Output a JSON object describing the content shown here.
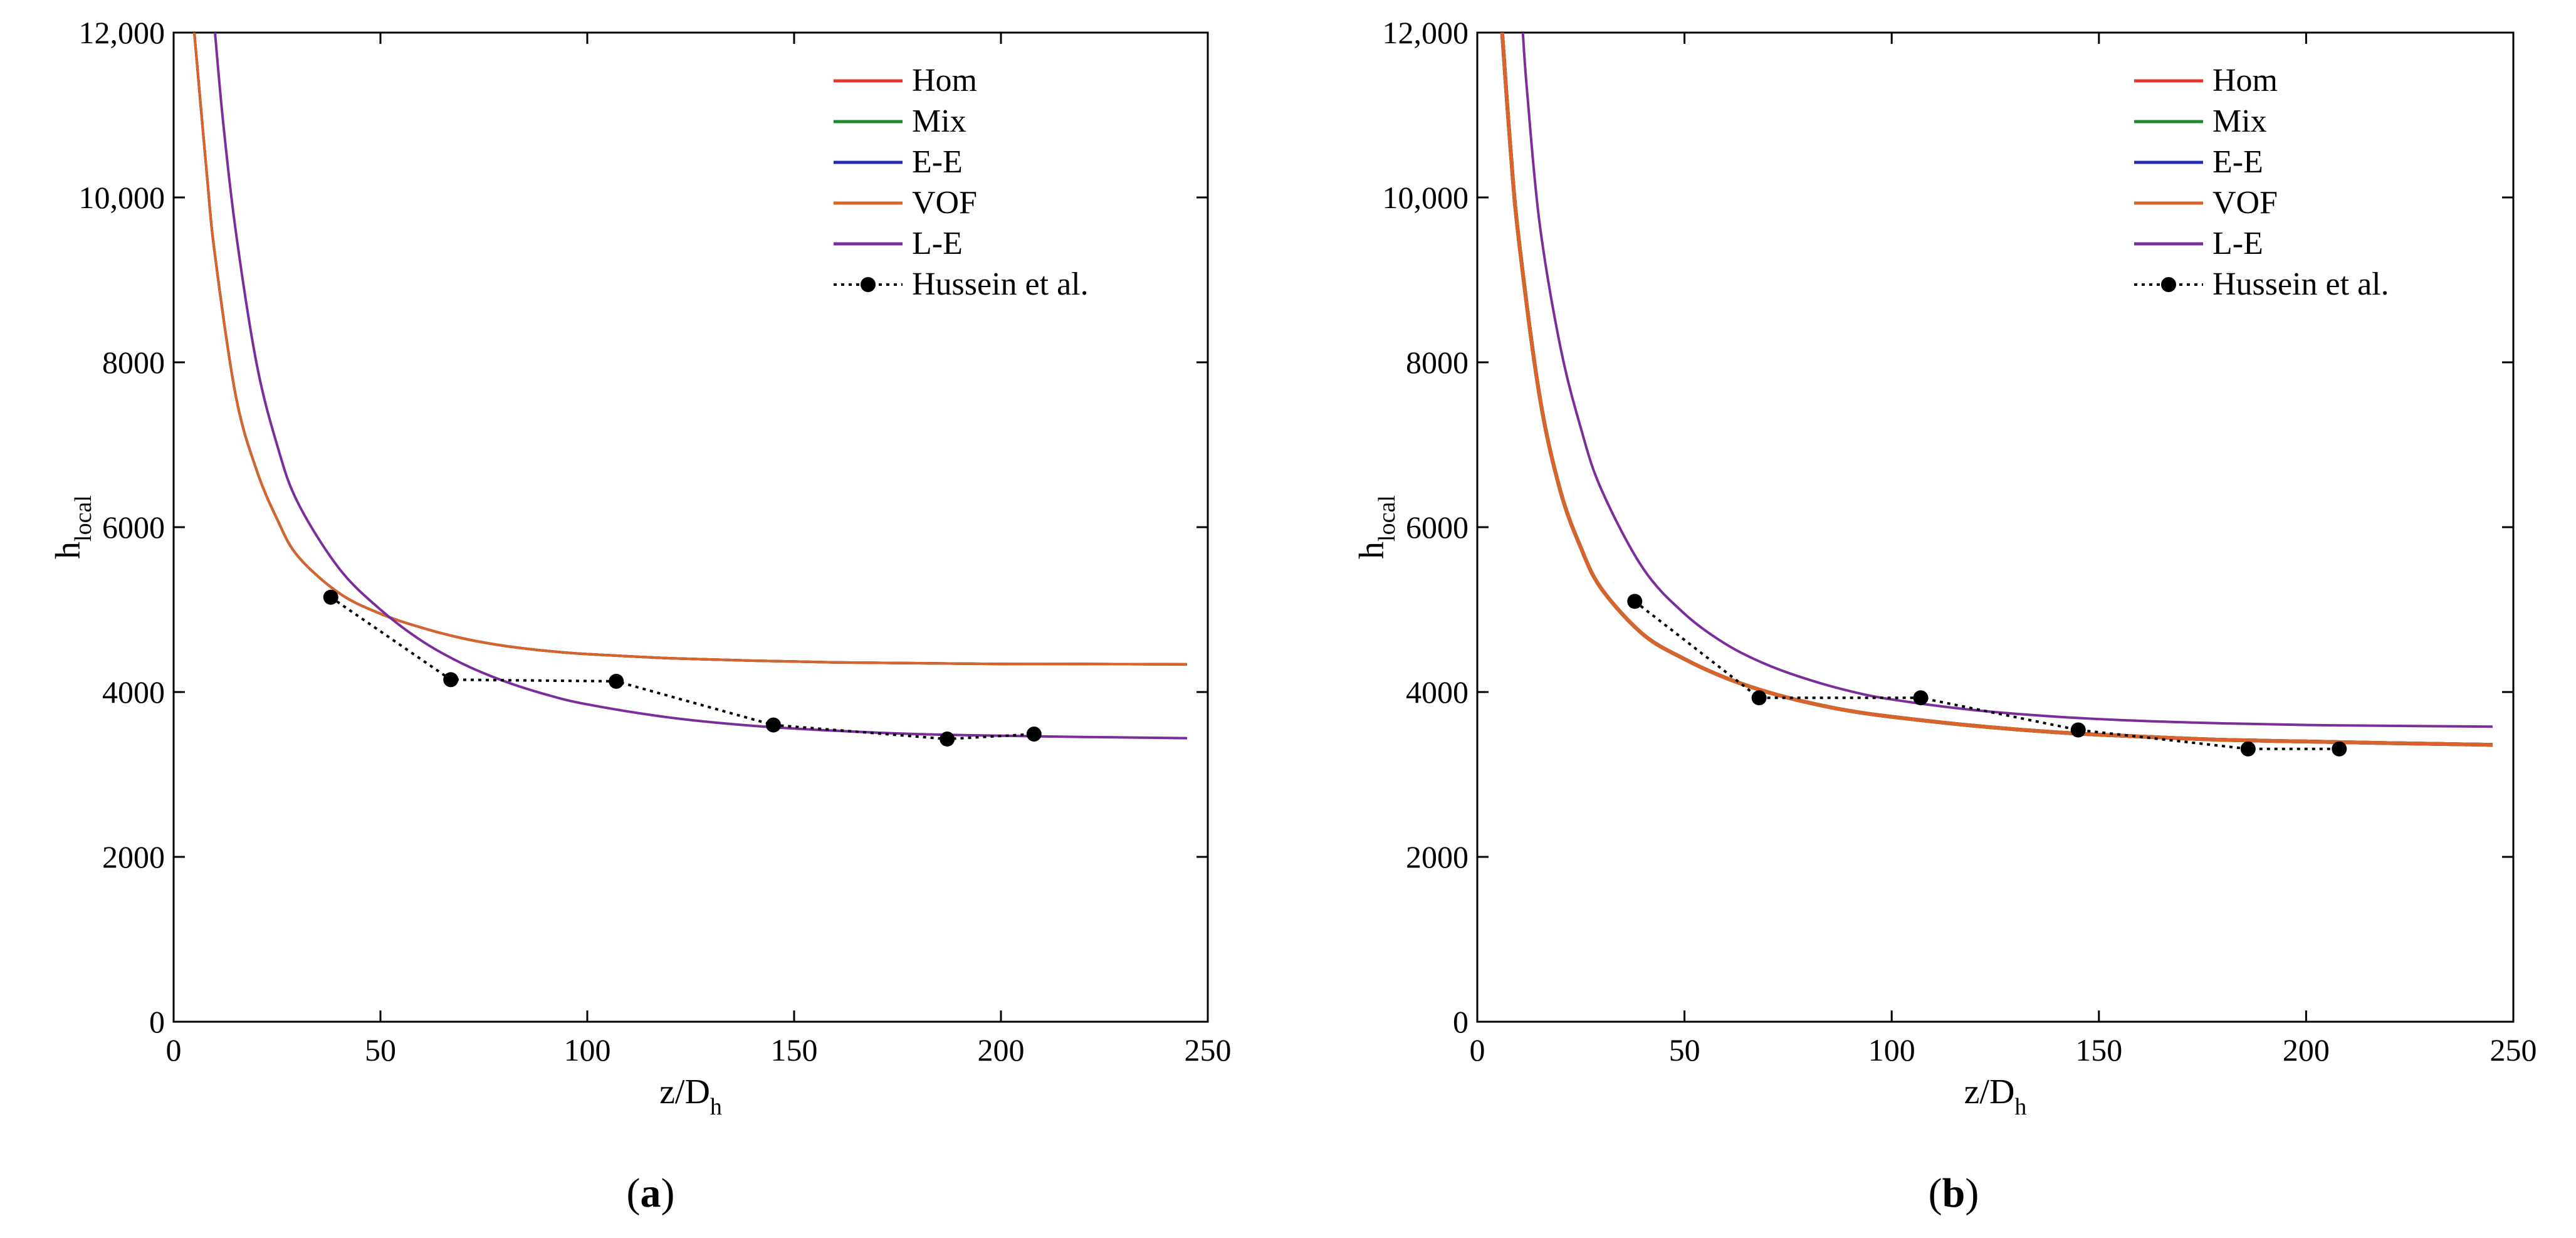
{
  "chart_data": [
    {
      "type": "line",
      "panel": "a",
      "caption": {
        "open": "(",
        "letter": "a",
        "close": ")"
      },
      "xlabel": {
        "main": "z/D",
        "sub": "h"
      },
      "ylabel": {
        "main": "h",
        "sub": "local"
      },
      "xlim": [
        0,
        250
      ],
      "ylim": [
        0,
        12000
      ],
      "x_ticks": [
        0,
        50,
        100,
        150,
        200,
        250
      ],
      "x_tick_labels": [
        "0",
        "50",
        "100",
        "150",
        "200",
        "250"
      ],
      "y_ticks": [
        0,
        2000,
        4000,
        6000,
        8000,
        10000,
        12000
      ],
      "y_tick_labels": [
        "0",
        "2000",
        "4000",
        "6000",
        "8000",
        "10,000",
        "12,000"
      ],
      "legend_position": "top-right",
      "series": [
        {
          "name": "Hom",
          "color": "#e8332a",
          "visible_curve": "shared",
          "x": [
            5,
            8,
            10,
            15,
            20,
            25,
            30,
            40,
            50,
            60,
            70,
            80,
            90,
            100,
            120,
            140,
            160,
            180,
            200,
            220,
            245
          ],
          "y": [
            12000,
            10300,
            9300,
            7600,
            6700,
            6100,
            5650,
            5200,
            4950,
            4780,
            4650,
            4560,
            4500,
            4460,
            4410,
            4380,
            4360,
            4350,
            4340,
            4340,
            4335
          ]
        },
        {
          "name": "Mix",
          "color": "#1a8a2a",
          "visible_curve": "shared",
          "x": [
            5,
            8,
            10,
            15,
            20,
            25,
            30,
            40,
            50,
            60,
            70,
            80,
            90,
            100,
            120,
            140,
            160,
            180,
            200,
            220,
            245
          ],
          "y": [
            12000,
            10300,
            9300,
            7600,
            6700,
            6100,
            5650,
            5200,
            4950,
            4780,
            4650,
            4560,
            4500,
            4460,
            4410,
            4380,
            4360,
            4350,
            4340,
            4340,
            4335
          ]
        },
        {
          "name": "E-E",
          "color": "#1f2fb5",
          "visible_curve": "shared",
          "x": [
            5,
            8,
            10,
            15,
            20,
            25,
            30,
            40,
            50,
            60,
            70,
            80,
            90,
            100,
            120,
            140,
            160,
            180,
            200,
            220,
            245
          ],
          "y": [
            12000,
            10300,
            9300,
            7600,
            6700,
            6100,
            5650,
            5200,
            4950,
            4780,
            4650,
            4560,
            4500,
            4460,
            4410,
            4380,
            4360,
            4350,
            4340,
            4340,
            4335
          ]
        },
        {
          "name": "VOF",
          "color": "#d9642a",
          "x": [
            5,
            8,
            10,
            15,
            20,
            25,
            30,
            40,
            50,
            60,
            70,
            80,
            90,
            100,
            120,
            140,
            160,
            180,
            200,
            220,
            245
          ],
          "y": [
            12000,
            10300,
            9300,
            7600,
            6700,
            6100,
            5650,
            5200,
            4950,
            4780,
            4650,
            4560,
            4500,
            4460,
            4410,
            4380,
            4360,
            4350,
            4340,
            4340,
            4335
          ]
        },
        {
          "name": "L-E",
          "color": "#7b2d9c",
          "x": [
            10,
            12,
            15,
            20,
            25,
            30,
            40,
            50,
            60,
            70,
            80,
            90,
            100,
            120,
            140,
            160,
            180,
            200,
            220,
            245
          ],
          "y": [
            12000,
            10900,
            9600,
            8000,
            7000,
            6300,
            5500,
            5000,
            4620,
            4340,
            4130,
            3970,
            3850,
            3690,
            3590,
            3530,
            3490,
            3470,
            3455,
            3440
          ]
        },
        {
          "name": "Hussein et al.",
          "color": "#000000",
          "style": "dotted-markers",
          "x": [
            38,
            67,
            107,
            145,
            187,
            208
          ],
          "y": [
            5150,
            4150,
            4130,
            3600,
            3430,
            3490
          ]
        }
      ]
    },
    {
      "type": "line",
      "panel": "b",
      "caption": {
        "open": "(",
        "letter": "b",
        "close": ")"
      },
      "xlabel": {
        "main": "z/D",
        "sub": "h"
      },
      "ylabel": {
        "main": "h",
        "sub": "local"
      },
      "xlim": [
        0,
        250
      ],
      "ylim": [
        0,
        12000
      ],
      "x_ticks": [
        0,
        50,
        100,
        150,
        200,
        250
      ],
      "x_tick_labels": [
        "0",
        "50",
        "100",
        "150",
        "200",
        "250"
      ],
      "y_ticks": [
        0,
        2000,
        4000,
        6000,
        8000,
        10000,
        12000
      ],
      "y_tick_labels": [
        "0",
        "2000",
        "4000",
        "6000",
        "8000",
        "10,000",
        "12,000"
      ],
      "legend_position": "top-right",
      "series": [
        {
          "name": "Hom",
          "color": "#e8332a",
          "visible_curve": "shared",
          "x": [
            6,
            8,
            10,
            15,
            20,
            25,
            30,
            40,
            50,
            60,
            70,
            80,
            90,
            100,
            120,
            140,
            160,
            180,
            200,
            220,
            245
          ],
          "y": [
            12000,
            10600,
            9500,
            7600,
            6450,
            5750,
            5250,
            4700,
            4400,
            4170,
            4000,
            3870,
            3770,
            3700,
            3590,
            3510,
            3460,
            3420,
            3400,
            3380,
            3360
          ]
        },
        {
          "name": "Mix",
          "color": "#1a8a2a",
          "visible_curve": "shared",
          "x": [
            6,
            8,
            10,
            15,
            20,
            25,
            30,
            40,
            50,
            60,
            70,
            80,
            90,
            100,
            120,
            140,
            160,
            180,
            200,
            220,
            245
          ],
          "y": [
            12000,
            10600,
            9500,
            7600,
            6450,
            5750,
            5250,
            4700,
            4400,
            4170,
            4000,
            3870,
            3770,
            3700,
            3590,
            3510,
            3460,
            3420,
            3400,
            3380,
            3360
          ]
        },
        {
          "name": "E-E",
          "color": "#1f2fb5",
          "visible_curve": "shared",
          "x": [
            6,
            8,
            10,
            15,
            20,
            25,
            30,
            40,
            50,
            60,
            70,
            80,
            90,
            100,
            120,
            140,
            160,
            180,
            200,
            220,
            245
          ],
          "y": [
            12000,
            10600,
            9500,
            7600,
            6450,
            5750,
            5250,
            4700,
            4400,
            4170,
            4000,
            3870,
            3770,
            3700,
            3590,
            3510,
            3460,
            3420,
            3400,
            3380,
            3360
          ]
        },
        {
          "name": "VOF",
          "color": "#d9642a",
          "x": [
            6,
            8,
            10,
            15,
            20,
            25,
            30,
            40,
            50,
            60,
            70,
            80,
            90,
            100,
            120,
            140,
            160,
            180,
            200,
            220,
            245
          ],
          "y": [
            12000,
            10600,
            9500,
            7600,
            6450,
            5750,
            5250,
            4700,
            4400,
            4170,
            4000,
            3870,
            3770,
            3700,
            3590,
            3510,
            3460,
            3420,
            3400,
            3380,
            3360
          ]
        },
        {
          "name": "L-E",
          "color": "#7b2d9c",
          "x": [
            11,
            12,
            15,
            20,
            25,
            30,
            40,
            50,
            60,
            70,
            80,
            90,
            100,
            120,
            140,
            160,
            180,
            200,
            220,
            245
          ],
          "y": [
            12000,
            11300,
            9700,
            8200,
            7200,
            6450,
            5500,
            4950,
            4580,
            4330,
            4150,
            4010,
            3910,
            3780,
            3700,
            3650,
            3620,
            3600,
            3590,
            3580
          ]
        },
        {
          "name": "Hussein et al.",
          "color": "#000000",
          "style": "dotted-markers",
          "x": [
            38,
            68,
            107,
            145,
            186,
            208
          ],
          "y": [
            5100,
            3930,
            3930,
            3540,
            3310,
            3310
          ]
        }
      ]
    }
  ]
}
